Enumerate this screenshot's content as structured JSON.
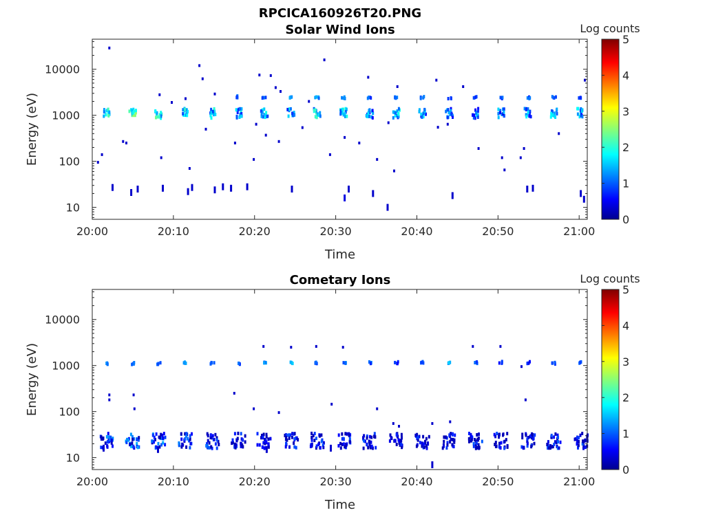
{
  "figure_title": "RPCICA160926T20.PNG",
  "colorbar": {
    "label": "Log counts",
    "ticks": [
      "0",
      "1",
      "2",
      "3",
      "4",
      "5"
    ],
    "range": [
      0,
      5
    ],
    "colormap": "jet"
  },
  "chart_data": [
    {
      "type": "heatmap",
      "title": "Solar Wind Ions",
      "xlabel": "Time",
      "ylabel": "Energy (eV)",
      "x_ticks": [
        "20:00",
        "20:10",
        "20:20",
        "20:30",
        "20:40",
        "20:50",
        "21:00"
      ],
      "y_ticks": [
        "10",
        "100",
        "1000",
        "10000"
      ],
      "x_range_minutes": [
        0,
        61
      ],
      "y_scale": "log",
      "y_range_eV": [
        5.5,
        45000
      ],
      "clusters": [
        {
          "t": 1.7,
          "e": 1150,
          "v": 2.4
        },
        {
          "t": 5.0,
          "e": 1100,
          "v": 2.6
        },
        {
          "t": 8.2,
          "e": 1100,
          "v": 2.5
        },
        {
          "t": 11.5,
          "e": 1100,
          "v": 2.3
        },
        {
          "t": 14.8,
          "e": 1100,
          "v": 2.2
        },
        {
          "t": 18.0,
          "e": 1100,
          "v": 2.0
        },
        {
          "t": 21.2,
          "e": 1100,
          "v": 2.0
        },
        {
          "t": 24.5,
          "e": 1100,
          "v": 2.1
        },
        {
          "t": 27.7,
          "e": 1100,
          "v": 2.2
        },
        {
          "t": 31.0,
          "e": 1100,
          "v": 2.2
        },
        {
          "t": 34.2,
          "e": 1100,
          "v": 1.9
        },
        {
          "t": 37.5,
          "e": 1100,
          "v": 1.9
        },
        {
          "t": 40.7,
          "e": 1100,
          "v": 1.9
        },
        {
          "t": 44.0,
          "e": 1100,
          "v": 1.8
        },
        {
          "t": 47.2,
          "e": 1100,
          "v": 1.9
        },
        {
          "t": 50.4,
          "e": 1100,
          "v": 1.8
        },
        {
          "t": 53.7,
          "e": 1100,
          "v": 1.9
        },
        {
          "t": 56.9,
          "e": 1100,
          "v": 1.8
        },
        {
          "t": 60.2,
          "e": 1100,
          "v": 1.9
        }
      ],
      "upper_band": [
        {
          "t": 18.0,
          "e": 2600,
          "v": 1.2
        },
        {
          "t": 21.2,
          "e": 2500,
          "v": 1.3
        },
        {
          "t": 24.5,
          "e": 2500,
          "v": 1.6
        },
        {
          "t": 27.7,
          "e": 2500,
          "v": 1.5
        },
        {
          "t": 31.0,
          "e": 2500,
          "v": 1.6
        },
        {
          "t": 34.2,
          "e": 2500,
          "v": 1.2
        },
        {
          "t": 37.5,
          "e": 2500,
          "v": 1.2
        },
        {
          "t": 40.7,
          "e": 2500,
          "v": 1.2
        },
        {
          "t": 44.0,
          "e": 2500,
          "v": 1.2
        },
        {
          "t": 47.2,
          "e": 2500,
          "v": 1.2
        },
        {
          "t": 50.4,
          "e": 2500,
          "v": 1.2
        },
        {
          "t": 53.7,
          "e": 2500,
          "v": 1.2
        },
        {
          "t": 56.9,
          "e": 2500,
          "v": 1.2
        },
        {
          "t": 60.2,
          "e": 2500,
          "v": 1.2
        }
      ],
      "low_energy_hits": [
        {
          "t": 2.5,
          "e": 27,
          "v": 0.3
        },
        {
          "t": 4.8,
          "e": 21,
          "v": 0.3
        },
        {
          "t": 5.6,
          "e": 25,
          "v": 0.3
        },
        {
          "t": 8.7,
          "e": 26,
          "v": 0.3
        },
        {
          "t": 11.8,
          "e": 22,
          "v": 0.3
        },
        {
          "t": 12.3,
          "e": 27,
          "v": 0.3
        },
        {
          "t": 15.1,
          "e": 24,
          "v": 0.3
        },
        {
          "t": 16.1,
          "e": 28,
          "v": 0.3
        },
        {
          "t": 17.1,
          "e": 26,
          "v": 0.3
        },
        {
          "t": 19.1,
          "e": 28,
          "v": 0.3
        },
        {
          "t": 24.6,
          "e": 25,
          "v": 0.3
        },
        {
          "t": 31.1,
          "e": 16,
          "v": 0.4
        },
        {
          "t": 31.6,
          "e": 25,
          "v": 0.3
        },
        {
          "t": 34.6,
          "e": 20,
          "v": 0.3
        },
        {
          "t": 36.4,
          "e": 10,
          "v": 0.3
        },
        {
          "t": 44.4,
          "e": 18,
          "v": 0.3
        },
        {
          "t": 53.6,
          "e": 25,
          "v": 0.3
        },
        {
          "t": 54.3,
          "e": 26,
          "v": 0.3
        },
        {
          "t": 60.2,
          "e": 20,
          "v": 0.3
        },
        {
          "t": 60.6,
          "e": 15,
          "v": 0.3
        }
      ],
      "scattered_hits": [
        {
          "t": 0.7,
          "e": 95
        },
        {
          "t": 1.2,
          "e": 140
        },
        {
          "t": 2.1,
          "e": 29000
        },
        {
          "t": 3.8,
          "e": 270
        },
        {
          "t": 4.2,
          "e": 250
        },
        {
          "t": 8.3,
          "e": 2800
        },
        {
          "t": 8.5,
          "e": 120
        },
        {
          "t": 9.8,
          "e": 1900
        },
        {
          "t": 11.5,
          "e": 2300
        },
        {
          "t": 12.0,
          "e": 70
        },
        {
          "t": 13.2,
          "e": 12000
        },
        {
          "t": 13.6,
          "e": 6200
        },
        {
          "t": 14.0,
          "e": 500
        },
        {
          "t": 15.1,
          "e": 2900
        },
        {
          "t": 17.6,
          "e": 250
        },
        {
          "t": 19.9,
          "e": 110
        },
        {
          "t": 20.2,
          "e": 640
        },
        {
          "t": 20.6,
          "e": 7500
        },
        {
          "t": 21.4,
          "e": 370
        },
        {
          "t": 22.0,
          "e": 7300
        },
        {
          "t": 22.6,
          "e": 4000
        },
        {
          "t": 23.0,
          "e": 270
        },
        {
          "t": 23.2,
          "e": 3300
        },
        {
          "t": 25.9,
          "e": 540
        },
        {
          "t": 26.7,
          "e": 2000
        },
        {
          "t": 28.6,
          "e": 16000
        },
        {
          "t": 29.3,
          "e": 140
        },
        {
          "t": 31.1,
          "e": 330
        },
        {
          "t": 32.9,
          "e": 250
        },
        {
          "t": 34.0,
          "e": 6700
        },
        {
          "t": 35.1,
          "e": 110
        },
        {
          "t": 36.5,
          "e": 690
        },
        {
          "t": 37.2,
          "e": 62
        },
        {
          "t": 37.6,
          "e": 4200
        },
        {
          "t": 42.4,
          "e": 5800
        },
        {
          "t": 42.6,
          "e": 550
        },
        {
          "t": 43.8,
          "e": 640
        },
        {
          "t": 45.7,
          "e": 4200
        },
        {
          "t": 47.6,
          "e": 190
        },
        {
          "t": 50.5,
          "e": 120
        },
        {
          "t": 50.8,
          "e": 65
        },
        {
          "t": 52.8,
          "e": 120
        },
        {
          "t": 53.2,
          "e": 190
        },
        {
          "t": 57.5,
          "e": 400
        },
        {
          "t": 60.7,
          "e": 5800
        }
      ]
    },
    {
      "type": "heatmap",
      "title": "Cometary Ions",
      "xlabel": "Time",
      "ylabel": "Energy (eV)",
      "x_ticks": [
        "20:00",
        "20:10",
        "20:20",
        "20:30",
        "20:40",
        "20:50",
        "21:00"
      ],
      "y_ticks": [
        "10",
        "100",
        "1000",
        "10000"
      ],
      "x_range_minutes": [
        0,
        61
      ],
      "y_scale": "log",
      "y_range_eV": [
        5.5,
        45000
      ],
      "clusters": [
        {
          "t": 1.8,
          "e": 23,
          "v": 1.3
        },
        {
          "t": 5.0,
          "e": 23,
          "v": 1.5
        },
        {
          "t": 8.2,
          "e": 23,
          "v": 1.4
        },
        {
          "t": 11.5,
          "e": 23,
          "v": 1.2
        },
        {
          "t": 14.8,
          "e": 23,
          "v": 1.2
        },
        {
          "t": 18.0,
          "e": 23,
          "v": 1.1
        },
        {
          "t": 21.2,
          "e": 23,
          "v": 1.0
        },
        {
          "t": 24.5,
          "e": 23,
          "v": 1.0
        },
        {
          "t": 27.7,
          "e": 23,
          "v": 1.0
        },
        {
          "t": 31.0,
          "e": 23,
          "v": 1.0
        },
        {
          "t": 34.2,
          "e": 23,
          "v": 1.0
        },
        {
          "t": 37.5,
          "e": 23,
          "v": 0.9
        },
        {
          "t": 40.7,
          "e": 23,
          "v": 0.9
        },
        {
          "t": 44.0,
          "e": 23,
          "v": 0.9
        },
        {
          "t": 47.2,
          "e": 23,
          "v": 1.0
        },
        {
          "t": 50.4,
          "e": 23,
          "v": 1.0
        },
        {
          "t": 53.7,
          "e": 23,
          "v": 1.0
        },
        {
          "t": 56.9,
          "e": 23,
          "v": 1.1
        },
        {
          "t": 60.2,
          "e": 23,
          "v": 1.1
        }
      ],
      "upper_band": [
        {
          "t": 1.7,
          "e": 1150,
          "v": 1.3
        },
        {
          "t": 5.0,
          "e": 1150,
          "v": 1.2
        },
        {
          "t": 8.2,
          "e": 1150,
          "v": 1.2
        },
        {
          "t": 11.5,
          "e": 1200,
          "v": 1.4
        },
        {
          "t": 14.8,
          "e": 1150,
          "v": 1.3
        },
        {
          "t": 18.0,
          "e": 1150,
          "v": 1.2
        },
        {
          "t": 21.2,
          "e": 1200,
          "v": 1.4
        },
        {
          "t": 24.5,
          "e": 1200,
          "v": 1.6
        },
        {
          "t": 27.7,
          "e": 1200,
          "v": 1.3
        },
        {
          "t": 31.0,
          "e": 1200,
          "v": 1.3
        },
        {
          "t": 34.2,
          "e": 1200,
          "v": 1.2
        },
        {
          "t": 37.5,
          "e": 1200,
          "v": 1.0
        },
        {
          "t": 40.7,
          "e": 1200,
          "v": 1.1
        },
        {
          "t": 44.0,
          "e": 1200,
          "v": 1.6
        },
        {
          "t": 47.2,
          "e": 1200,
          "v": 1.2
        },
        {
          "t": 50.4,
          "e": 1200,
          "v": 1.1
        },
        {
          "t": 53.7,
          "e": 1200,
          "v": 0.8
        },
        {
          "t": 56.9,
          "e": 1150,
          "v": 1.3
        },
        {
          "t": 60.2,
          "e": 1200,
          "v": 1.2
        }
      ],
      "low_energy_hits": [
        {
          "t": 1.4,
          "e": 16,
          "v": 0.3
        },
        {
          "t": 8.1,
          "e": 15,
          "v": 0.3
        },
        {
          "t": 21.5,
          "e": 15,
          "v": 0.3
        },
        {
          "t": 29.4,
          "e": 16,
          "v": 0.3
        },
        {
          "t": 41.9,
          "e": 7,
          "v": 0.3
        }
      ],
      "scattered_hits": [
        {
          "t": 2.1,
          "e": 230
        },
        {
          "t": 2.1,
          "e": 180
        },
        {
          "t": 5.1,
          "e": 230
        },
        {
          "t": 5.2,
          "e": 115
        },
        {
          "t": 17.5,
          "e": 250
        },
        {
          "t": 19.9,
          "e": 115
        },
        {
          "t": 21.1,
          "e": 2600
        },
        {
          "t": 23.0,
          "e": 95
        },
        {
          "t": 24.5,
          "e": 2500
        },
        {
          "t": 27.6,
          "e": 2600
        },
        {
          "t": 29.5,
          "e": 145
        },
        {
          "t": 30.9,
          "e": 2500
        },
        {
          "t": 35.1,
          "e": 115
        },
        {
          "t": 37.1,
          "e": 55
        },
        {
          "t": 37.8,
          "e": 48
        },
        {
          "t": 41.9,
          "e": 55
        },
        {
          "t": 44.1,
          "e": 60
        },
        {
          "t": 46.9,
          "e": 2600
        },
        {
          "t": 50.3,
          "e": 2600
        },
        {
          "t": 52.9,
          "e": 950
        },
        {
          "t": 53.4,
          "e": 180
        }
      ]
    }
  ]
}
